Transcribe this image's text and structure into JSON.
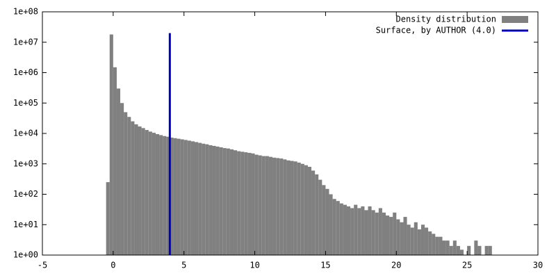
{
  "chart_data": {
    "type": "histogram",
    "bins": [
      -0.5,
      -0.25,
      0,
      0.25,
      0.5,
      0.75,
      1,
      1.25,
      1.5,
      1.75,
      2,
      2.25,
      2.5,
      2.75,
      3,
      3.25,
      3.5,
      3.75,
      4,
      4.25,
      4.5,
      4.75,
      5,
      5.25,
      5.5,
      5.75,
      6,
      6.25,
      6.5,
      6.75,
      7,
      7.25,
      7.5,
      7.75,
      8,
      8.25,
      8.5,
      8.75,
      9,
      9.25,
      9.5,
      9.75,
      10,
      10.25,
      10.5,
      10.75,
      11,
      11.25,
      11.5,
      11.75,
      12,
      12.25,
      12.5,
      12.75,
      13,
      13.25,
      13.5,
      13.75,
      14,
      14.25,
      14.5,
      14.75,
      15,
      15.25,
      15.5,
      15.75,
      16,
      16.25,
      16.5,
      16.75,
      17,
      17.25,
      17.5,
      17.75,
      18,
      18.25,
      18.5,
      18.75,
      19,
      19.25,
      19.5,
      19.75,
      20,
      20.25,
      20.5,
      20.75,
      21,
      21.25,
      21.5,
      21.75,
      22,
      22.25,
      22.5,
      22.75,
      23,
      23.25,
      23.5,
      23.75,
      24,
      24.25,
      24.5,
      24.75,
      25,
      25.25,
      25.5,
      25.75,
      26,
      26.25,
      26.5,
      26.75
    ],
    "series": [
      {
        "name": "Density distribution",
        "color": "#808080",
        "values": [
          250,
          18000000,
          1500000,
          300000,
          100000,
          50000,
          35000,
          25000,
          20000,
          17000,
          15000,
          13000,
          11500,
          10500,
          9500,
          8800,
          8200,
          7800,
          7300,
          7000,
          6700,
          6400,
          6100,
          5800,
          5500,
          5200,
          4900,
          4600,
          4400,
          4100,
          3900,
          3700,
          3500,
          3300,
          3200,
          3000,
          2800,
          2600,
          2500,
          2400,
          2300,
          2200,
          2000,
          1900,
          1800,
          1800,
          1700,
          1600,
          1550,
          1500,
          1400,
          1300,
          1250,
          1200,
          1100,
          1000,
          900,
          800,
          600,
          450,
          300,
          200,
          150,
          100,
          70,
          60,
          50,
          45,
          40,
          35,
          45,
          35,
          40,
          30,
          40,
          30,
          25,
          35,
          25,
          20,
          18,
          25,
          15,
          12,
          18,
          10,
          8,
          12,
          7,
          10,
          8,
          6,
          5,
          4,
          4,
          3,
          3,
          2,
          3,
          2,
          1.5,
          0,
          2,
          0,
          3,
          2,
          0,
          2,
          2
        ]
      }
    ],
    "reference_line": {
      "name": "Surface, by AUTHOR (4.0)",
      "color": "#0000c0",
      "x": 4,
      "y": [
        1,
        20000000
      ]
    },
    "xlim": [
      -5,
      30
    ],
    "xticks": [
      -5,
      0,
      5,
      10,
      15,
      20,
      25,
      30
    ],
    "ylim": [
      1,
      100000000
    ],
    "log_y": true,
    "yticks": [
      {
        "value": 1,
        "label": "1e+00"
      },
      {
        "value": 10,
        "label": "1e+01"
      },
      {
        "value": 100,
        "label": "1e+02"
      },
      {
        "value": 1000,
        "label": "1e+03"
      },
      {
        "value": 10000,
        "label": "1e+04"
      },
      {
        "value": 100000,
        "label": "1e+05"
      },
      {
        "value": 1000000,
        "label": "1e+06"
      },
      {
        "value": 10000000,
        "label": "1e+07"
      },
      {
        "value": 100000000,
        "label": "1e+08"
      }
    ],
    "legend": "top-right"
  }
}
